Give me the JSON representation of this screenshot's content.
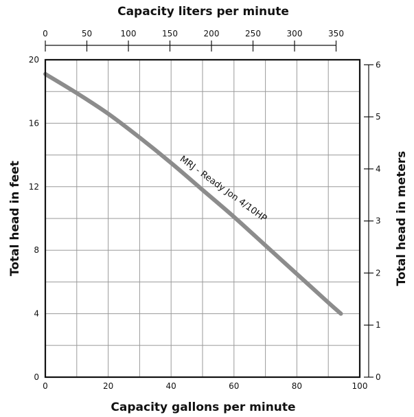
{
  "chart_data": {
    "type": "line",
    "xlabel": "Capacity gallons per minute",
    "ylabel": "Total head in feet",
    "x2label": "Capacity liters per minute",
    "y2label": "Total head in meters",
    "xlim": [
      0,
      100
    ],
    "ylim": [
      0,
      20
    ],
    "x2lim": [
      0,
      378.5
    ],
    "y2lim": [
      0,
      6.096
    ],
    "xticks": [
      0,
      20,
      40,
      60,
      80,
      100
    ],
    "yticks": [
      0,
      4,
      8,
      12,
      16,
      20
    ],
    "x2ticks": [
      0,
      50,
      100,
      150,
      200,
      250,
      300,
      350
    ],
    "y2ticks": [
      0,
      1,
      2,
      3,
      4,
      5,
      6
    ],
    "grid": true,
    "series": [
      {
        "name": "MRJ - Ready Jon  4/10HP",
        "color": "#8c8c8c",
        "x": [
          0,
          10,
          20,
          30,
          40,
          50,
          60,
          70,
          80,
          90,
          94
        ],
        "y": [
          19.1,
          17.9,
          16.6,
          15.1,
          13.5,
          11.8,
          10.1,
          8.3,
          6.5,
          4.7,
          4.0
        ]
      }
    ]
  }
}
